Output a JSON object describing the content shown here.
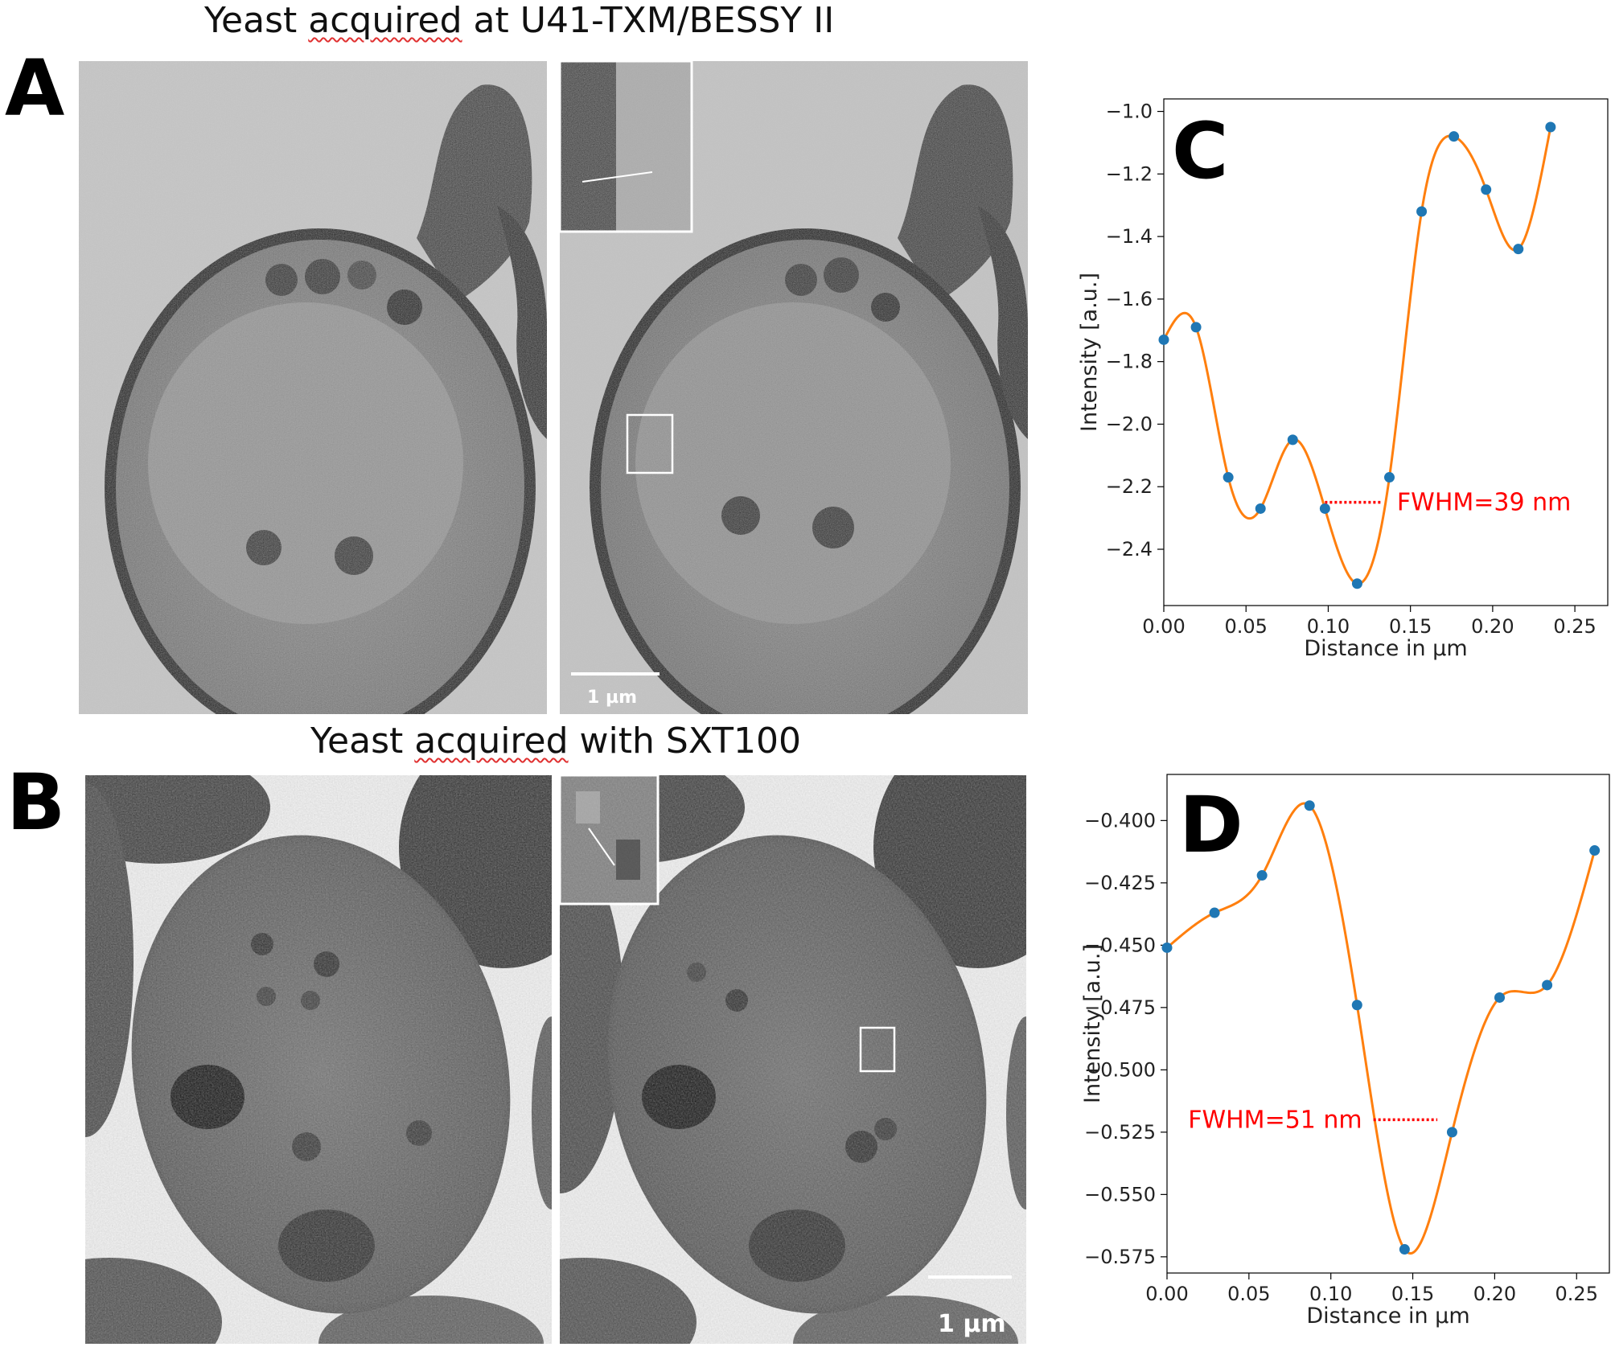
{
  "row_a": {
    "title_prefix": "Yeast ",
    "title_squiggle": "acquired",
    "title_suffix": " at U41-TXM/BESSY II",
    "letter": "A",
    "scalebar_label": "1 µm"
  },
  "row_b": {
    "title_prefix": "Yeast ",
    "title_squiggle": "acquired",
    "title_suffix": " with SXT100",
    "letter": "B",
    "scalebar_label": "1 µm"
  },
  "chart_data": [
    {
      "panel": "C",
      "type": "line",
      "xlabel": "Distance in µm",
      "ylabel": "Intensity [a.u.]",
      "xlim": [
        0.0,
        0.27
      ],
      "ylim": [
        -2.58,
        -0.96
      ],
      "xticks": [
        0.0,
        0.05,
        0.1,
        0.15,
        0.2,
        0.25
      ],
      "xtick_labels": [
        "0.00",
        "0.05",
        "0.10",
        "0.15",
        "0.20",
        "0.25"
      ],
      "yticks": [
        -2.4,
        -2.2,
        -2.0,
        -1.8,
        -1.6,
        -1.4,
        -1.2,
        -1.0
      ],
      "ytick_labels": [
        "−2.4",
        "−2.2",
        "−2.0",
        "−1.8",
        "−1.6",
        "−1.4",
        "−1.2",
        "−1.0"
      ],
      "points_x": [
        0.0,
        0.0196,
        0.0392,
        0.0588,
        0.0784,
        0.098,
        0.1176,
        0.1372,
        0.1568,
        0.1764,
        0.196,
        0.2156,
        0.2352
      ],
      "points_y": [
        -1.73,
        -1.69,
        -2.17,
        -2.27,
        -2.05,
        -2.27,
        -2.51,
        -2.17,
        -1.32,
        -1.08,
        -1.25,
        -1.44,
        -1.05
      ],
      "marker_color": "#1f77b4",
      "line_color": "#ff7f0e",
      "annotation": {
        "text": "FWHM=39 nm",
        "color": "#ff0000",
        "x0": 0.098,
        "x1": 0.133,
        "y": -2.25
      }
    },
    {
      "panel": "D",
      "type": "line",
      "xlabel": "Distance in µm",
      "ylabel": "Intensity [a.u.]",
      "xlim": [
        0.0,
        0.27
      ],
      "ylim": [
        -0.5815,
        -0.3815
      ],
      "xticks": [
        0.0,
        0.05,
        0.1,
        0.15,
        0.2,
        0.25
      ],
      "xtick_labels": [
        "0.00",
        "0.05",
        "0.10",
        "0.15",
        "0.20",
        "0.25"
      ],
      "yticks": [
        -0.575,
        -0.55,
        -0.525,
        -0.5,
        -0.475,
        -0.45,
        -0.425,
        -0.4
      ],
      "ytick_labels": [
        "−0.575",
        "−0.550",
        "−0.525",
        "−0.500",
        "−0.475",
        "−0.450",
        "−0.425",
        "−0.400"
      ],
      "points_x": [
        0.0,
        0.029,
        0.058,
        0.087,
        0.116,
        0.145,
        0.174,
        0.203,
        0.232,
        0.261
      ],
      "points_y": [
        -0.451,
        -0.437,
        -0.422,
        -0.394,
        -0.474,
        -0.572,
        -0.525,
        -0.471,
        -0.466,
        -0.412
      ],
      "marker_color": "#1f77b4",
      "line_color": "#ff7f0e",
      "annotation": {
        "text": "FWHM=51 nm",
        "color": "#ff0000",
        "x0": 0.126,
        "x1": 0.165,
        "y": -0.52
      }
    }
  ]
}
